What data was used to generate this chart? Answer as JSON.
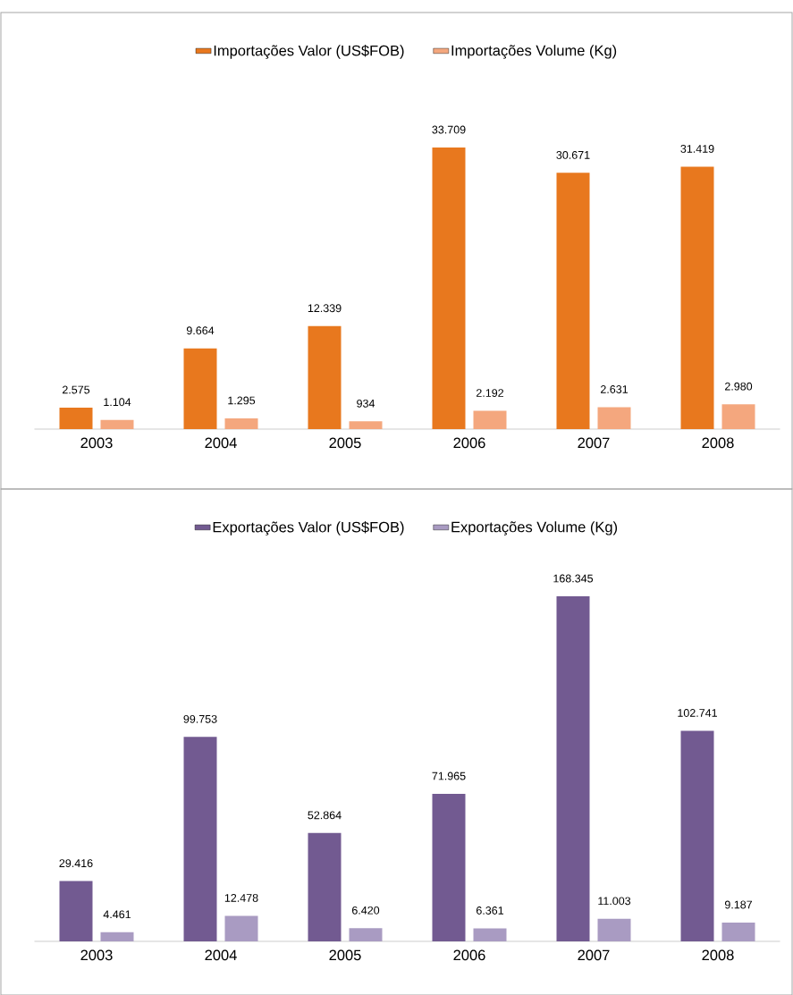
{
  "chart_data": [
    {
      "type": "bar",
      "categories": [
        "2003",
        "2004",
        "2005",
        "2006",
        "2007",
        "2008"
      ],
      "legend": "top",
      "series": [
        {
          "name": "Importações Valor (US$FOB)",
          "color": "#e8781e",
          "values": [
            2575,
            9664,
            12339,
            33709,
            30671,
            31419
          ],
          "value_labels": [
            "2.575",
            "9.664",
            "12.339",
            "33.709",
            "30.671",
            "31.419"
          ]
        },
        {
          "name": "Importações Volume (Kg)",
          "color": "#f4a77e",
          "values": [
            1104,
            1295,
            934,
            2192,
            2631,
            2980
          ],
          "value_labels": [
            "1.104",
            "1.295",
            "934",
            "2.192",
            "2.631",
            "2.980"
          ]
        }
      ]
    },
    {
      "type": "bar",
      "categories": [
        "2003",
        "2004",
        "2005",
        "2006",
        "2007",
        "2008"
      ],
      "legend": "top",
      "series": [
        {
          "name": "Exportações Valor (US$FOB)",
          "color": "#725a91",
          "values": [
            29416,
            99753,
            52864,
            71965,
            168345,
            102741
          ],
          "value_labels": [
            "29.416",
            "99.753",
            "52.864",
            "71.965",
            "168.345",
            "102.741"
          ]
        },
        {
          "name": "Exportações Volume (Kg)",
          "color": "#a99bc2",
          "values": [
            4461,
            12478,
            6420,
            6361,
            11003,
            9187
          ],
          "value_labels": [
            "4.461",
            "12.478",
            "6.420",
            "6.361",
            "11.003",
            "9.187"
          ]
        }
      ]
    }
  ]
}
